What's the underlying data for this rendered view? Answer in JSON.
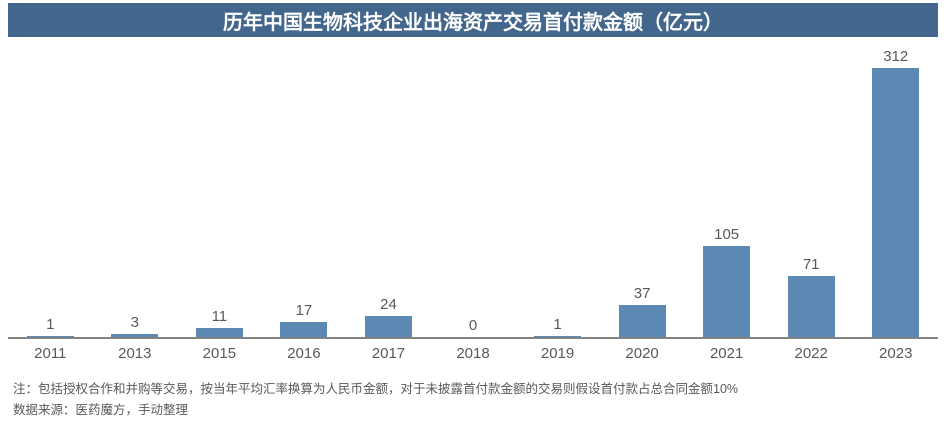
{
  "header": {
    "title": "历年中国生物科技企业出海资产交易首付款金额（亿元）"
  },
  "chart_data": {
    "type": "bar",
    "title": "历年中国生物科技企业出海资产交易首付款金额（亿元）",
    "categories": [
      "2011",
      "2013",
      "2015",
      "2016",
      "2017",
      "2018",
      "2019",
      "2020",
      "2021",
      "2022",
      "2023"
    ],
    "values": [
      1,
      3,
      11,
      17,
      24,
      0,
      1,
      37,
      105,
      71,
      312
    ],
    "xlabel": "",
    "ylabel": "",
    "ylim": [
      0,
      320
    ],
    "grid": false,
    "legend": "none",
    "data_labels": true
  },
  "notes": {
    "note": "注：包括授权合作和并购等交易，按当年平均汇率换算为人民币金额，对于未披露首付款金额的交易则假设首付款占总合同金额10%",
    "source": "数据来源：医药魔方，手动整理"
  },
  "colors": {
    "header_bg": "#42668C",
    "header_text": "#FFFFFF",
    "bar": "#5B89B4",
    "axis": "#848484",
    "label_text": "#595959"
  }
}
